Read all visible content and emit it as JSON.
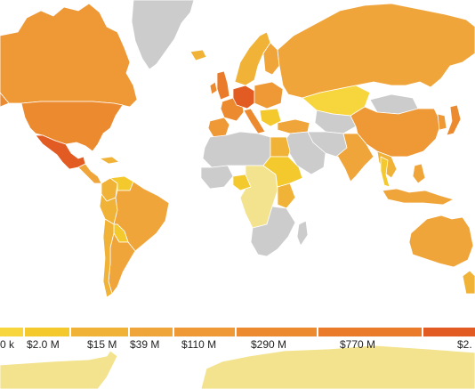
{
  "colors": {
    "no_data": "#cccccc",
    "ocean": "#ffffff",
    "antarctica": "#f3e38e",
    "border": "#ffffff"
  },
  "legend": {
    "stops": [
      {
        "color": "#f7d53d",
        "label": "0 k"
      },
      {
        "color": "#f3c92e",
        "label": "$2.0 M"
      },
      {
        "color": "#f1b238",
        "label": "$15 M"
      },
      {
        "color": "#f0a53b",
        "label": "$39 M"
      },
      {
        "color": "#ee9836",
        "label": "$110 M"
      },
      {
        "color": "#ec8a30",
        "label": "$290 M"
      },
      {
        "color": "#e97b2b",
        "label": "$770 M"
      },
      {
        "color": "#e25b22",
        "label": "$2."
      }
    ]
  },
  "regions": [
    {
      "name": "greenland",
      "color": "#cccccc"
    },
    {
      "name": "canada",
      "color": "#ee9836"
    },
    {
      "name": "usa",
      "color": "#ec8a30"
    },
    {
      "name": "mexico",
      "color": "#e25b22"
    },
    {
      "name": "central-america",
      "color": "#f0a53b"
    },
    {
      "name": "caribbean",
      "color": "#f1b238"
    },
    {
      "name": "colombia",
      "color": "#f1b238"
    },
    {
      "name": "venezuela",
      "color": "#f3c92e"
    },
    {
      "name": "brazil",
      "color": "#f0a53b"
    },
    {
      "name": "peru",
      "color": "#f1b238"
    },
    {
      "name": "bolivia",
      "color": "#f3c92e"
    },
    {
      "name": "argentina",
      "color": "#f0a53b"
    },
    {
      "name": "chile",
      "color": "#f1b238"
    },
    {
      "name": "iceland",
      "color": "#f1b238"
    },
    {
      "name": "uk",
      "color": "#e97b2b"
    },
    {
      "name": "ireland",
      "color": "#ec8a30"
    },
    {
      "name": "scandinavia",
      "color": "#f1b238"
    },
    {
      "name": "finland",
      "color": "#f0a53b"
    },
    {
      "name": "france",
      "color": "#ec8a30"
    },
    {
      "name": "spain",
      "color": "#ee9836"
    },
    {
      "name": "germany",
      "color": "#e25b22"
    },
    {
      "name": "central-europe",
      "color": "#ee9836"
    },
    {
      "name": "italy",
      "color": "#ec8a30"
    },
    {
      "name": "balkans",
      "color": "#f3c92e"
    },
    {
      "name": "russia",
      "color": "#f0a53b"
    },
    {
      "name": "kazakhstan",
      "color": "#f7d53d"
    },
    {
      "name": "mongolia",
      "color": "#cccccc"
    },
    {
      "name": "china",
      "color": "#ee9836"
    },
    {
      "name": "japan",
      "color": "#ec8a30"
    },
    {
      "name": "korea",
      "color": "#ee9836"
    },
    {
      "name": "turkey",
      "color": "#f0a53b"
    },
    {
      "name": "middle-east",
      "color": "#cccccc"
    },
    {
      "name": "egypt",
      "color": "#f1b238"
    },
    {
      "name": "north-africa",
      "color": "#cccccc"
    },
    {
      "name": "west-africa",
      "color": "#cccccc"
    },
    {
      "name": "nigeria",
      "color": "#f3c92e"
    },
    {
      "name": "central-africa",
      "color": "#f3e38e"
    },
    {
      "name": "east-africa",
      "color": "#f3c92e"
    },
    {
      "name": "kenya",
      "color": "#f1b238"
    },
    {
      "name": "southern-africa",
      "color": "#cccccc"
    },
    {
      "name": "madagascar",
      "color": "#cccccc"
    },
    {
      "name": "iran",
      "color": "#cccccc"
    },
    {
      "name": "central-asia",
      "color": "#cccccc"
    },
    {
      "name": "india",
      "color": "#f0a53b"
    },
    {
      "name": "southeast-asia",
      "color": "#f1b238"
    },
    {
      "name": "thailand",
      "color": "#f3c92e"
    },
    {
      "name": "indonesia",
      "color": "#f0a53b"
    },
    {
      "name": "philippines",
      "color": "#f0a53b"
    },
    {
      "name": "australia",
      "color": "#f0a53b"
    },
    {
      "name": "new-zealand",
      "color": "#f1b238"
    },
    {
      "name": "antarctica",
      "color": "#f3e38e"
    }
  ]
}
